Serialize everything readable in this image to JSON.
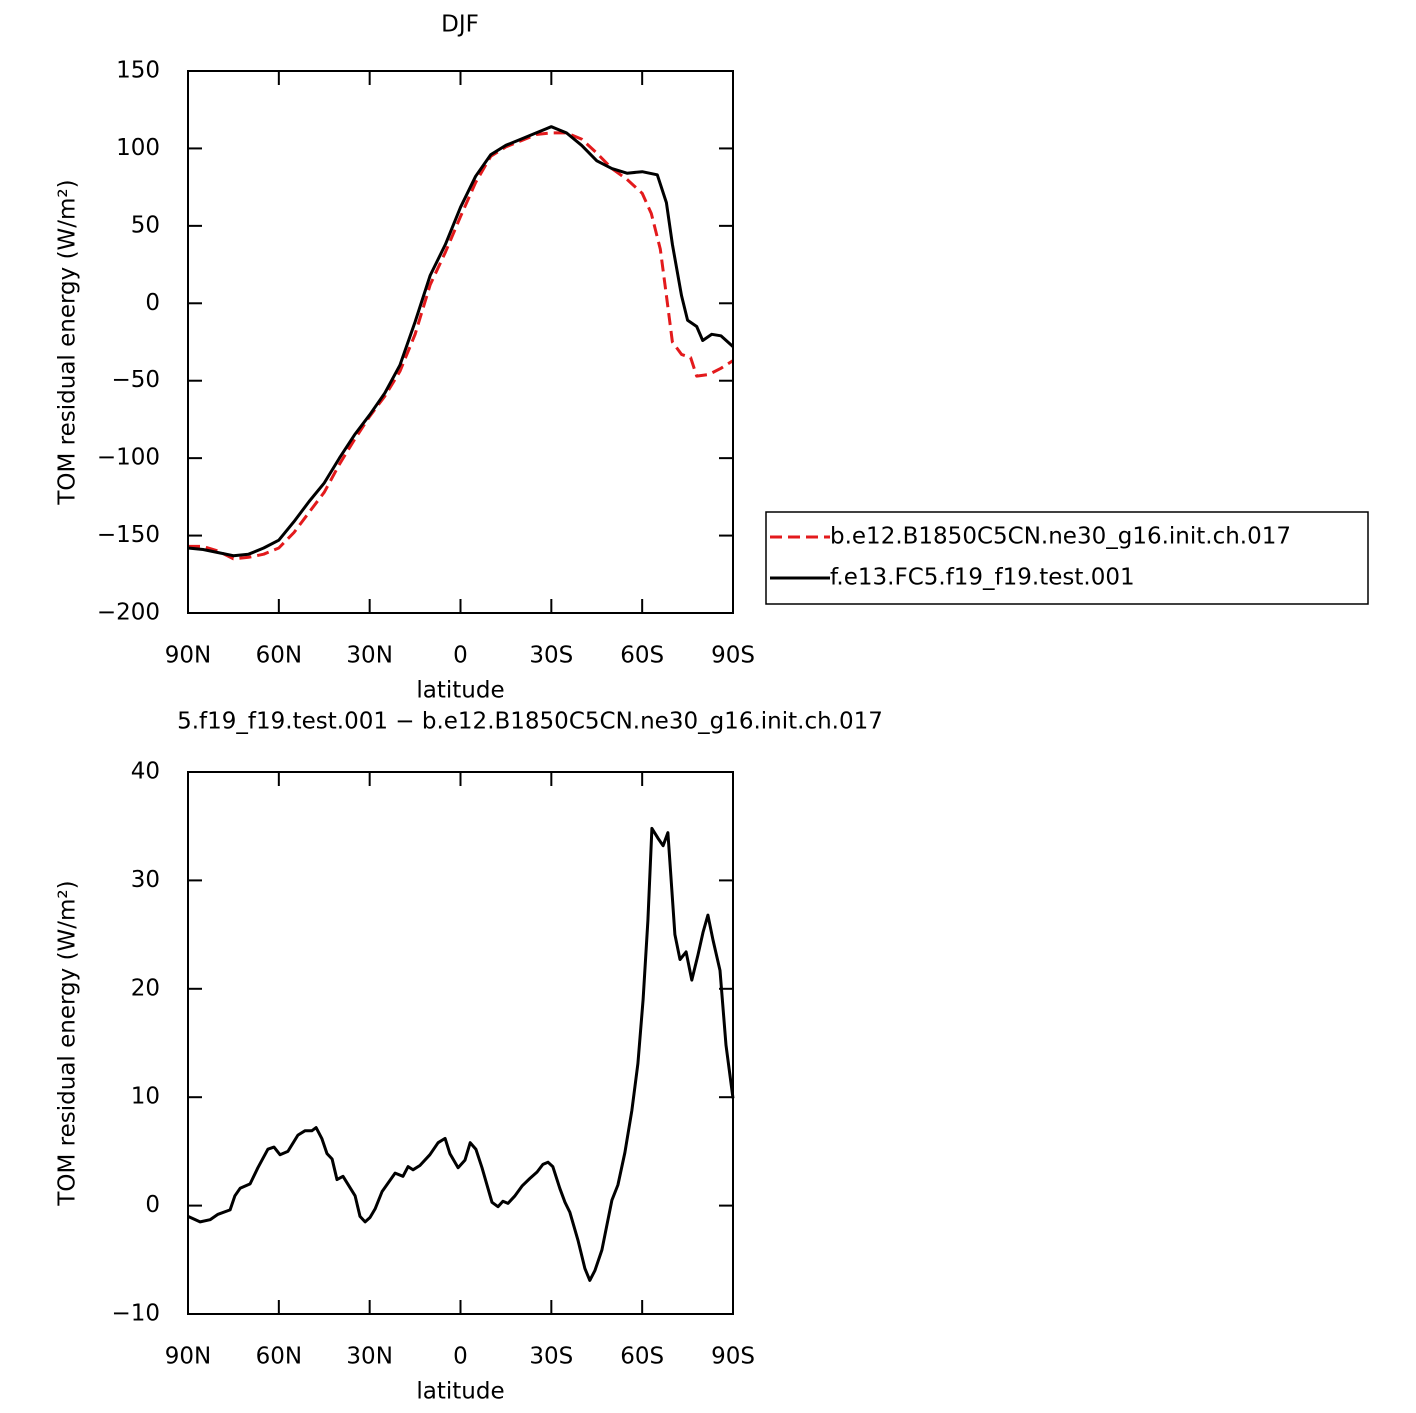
{
  "chart_data": [
    {
      "type": "line",
      "title": "DJF",
      "xlabel": "latitude",
      "ylabel": "TOM residual energy (W/m²)",
      "xlim": [
        90,
        -90
      ],
      "xticks": [
        {
          "value": 90,
          "label": "90N"
        },
        {
          "value": 60,
          "label": "60N"
        },
        {
          "value": 30,
          "label": "30N"
        },
        0,
        {
          "value": -30,
          "label": "30S"
        },
        {
          "value": -60,
          "label": "60S"
        },
        {
          "value": -90,
          "label": "90S"
        }
      ],
      "ylim": [
        -200,
        150
      ],
      "yticks": [
        {
          "value": -200,
          "label": "−200"
        },
        {
          "value": -150,
          "label": "−150"
        },
        {
          "value": -100,
          "label": "−100"
        },
        {
          "value": -50,
          "label": "−50"
        },
        0,
        50,
        100,
        150
      ],
      "legend": "right",
      "series": [
        {
          "name": "b.e12.B1850C5CN.ne30_g16.init.ch.017",
          "color": "#e31a1c",
          "dash": true,
          "x": [
            90,
            85,
            80,
            75,
            70,
            65,
            60,
            55,
            50,
            45,
            40,
            35,
            30,
            25,
            20,
            15,
            10,
            5,
            0,
            -5,
            -10,
            -15,
            -20,
            -25,
            -30,
            -35,
            -40,
            -45,
            -50,
            -55,
            -60,
            -63,
            -66,
            -68,
            -70,
            -73,
            -76,
            -78,
            -82,
            -86,
            -90
          ],
          "values": [
            -157,
            -157,
            -160,
            -165,
            -164,
            -162,
            -158,
            -148,
            -135,
            -122,
            -104,
            -88,
            -73,
            -60,
            -44,
            -20,
            12,
            33,
            56,
            78,
            95,
            101,
            105,
            109,
            110,
            110,
            106,
            97,
            87,
            80,
            71,
            58,
            35,
            5,
            -25,
            -33,
            -35,
            -47,
            -46,
            -42,
            -37
          ]
        },
        {
          "name": "f.e13.FC5.f19_f19.test.001",
          "color": "#000000",
          "dash": false,
          "x": [
            90,
            85,
            80,
            75,
            70,
            65,
            60,
            55,
            50,
            45,
            40,
            35,
            30,
            25,
            20,
            15,
            10,
            5,
            0,
            -5,
            -10,
            -15,
            -20,
            -25,
            -30,
            -35,
            -40,
            -45,
            -50,
            -55,
            -60,
            -65,
            -68,
            -70,
            -73,
            -75,
            -78,
            -80,
            -83,
            -86,
            -90
          ],
          "values": [
            -158,
            -159,
            -161,
            -163,
            -162,
            -158,
            -153,
            -141,
            -128,
            -116,
            -100,
            -85,
            -72,
            -58,
            -40,
            -12,
            18,
            38,
            62,
            82,
            96,
            102,
            106,
            110,
            114,
            110,
            102,
            92,
            87,
            84,
            85,
            83,
            65,
            38,
            5,
            -11,
            -15,
            -24,
            -20,
            -21,
            -28
          ]
        }
      ]
    },
    {
      "type": "line",
      "title": "5.f19_f19.test.001 − b.e12.B1850C5CN.ne30_g16.init.ch.017",
      "xlabel": "latitude",
      "ylabel": "TOM residual energy (W/m²)",
      "xlim": [
        90,
        -90
      ],
      "xticks": [
        {
          "value": 90,
          "label": "90N"
        },
        {
          "value": 60,
          "label": "60N"
        },
        {
          "value": 30,
          "label": "30N"
        },
        0,
        {
          "value": -30,
          "label": "30S"
        },
        {
          "value": -60,
          "label": "60S"
        },
        {
          "value": -90,
          "label": "90S"
        }
      ],
      "ylim": [
        -10,
        40
      ],
      "yticks": [
        {
          "value": -10,
          "label": "−10"
        },
        0,
        10,
        20,
        30,
        40
      ],
      "series": [
        {
          "color": "#000000",
          "dash": false,
          "x": [
            90,
            86,
            82.7,
            80.1,
            76.1,
            74.5,
            72.8,
            69.5,
            66.9,
            63.6,
            61.6,
            59.6,
            57,
            53.7,
            51.4,
            49.1,
            47.7,
            45.8,
            44.1,
            42.4,
            40.8,
            38.8,
            34.8,
            33.2,
            31.5,
            29.9,
            28.2,
            25.9,
            21.6,
            19,
            17.3,
            15.7,
            13.4,
            10.1,
            7.4,
            5.1,
            3.5,
            0.8,
            -1.5,
            -3.2,
            -5.1,
            -7.1,
            -10.4,
            -12.4,
            -14,
            -15.7,
            -18,
            -20.3,
            -22.9,
            -25.3,
            -27.2,
            -28.9,
            -30.5,
            -32.8,
            -34.5,
            -36.1,
            -38.8,
            -41.1,
            -42.7,
            -44.4,
            -46.7,
            -50,
            -52,
            -54.3,
            -56.6,
            -58.6,
            -60.3,
            -61.9,
            -63.2,
            -65.2,
            -66.9,
            -68.5,
            -70.8,
            -72.5,
            -74.5,
            -76.4,
            -78.4,
            -80.1,
            -81.7,
            -83.4,
            -85.7,
            -87.7,
            -90
          ],
          "values": [
            -1,
            -1.5,
            -1.3,
            -0.8,
            -0.4,
            0.9,
            1.6,
            2,
            3.5,
            5.2,
            5.4,
            4.7,
            5,
            6.5,
            6.9,
            6.9,
            7.2,
            6.2,
            4.8,
            4.3,
            2.4,
            2.7,
            0.9,
            -1,
            -1.5,
            -1.1,
            -0.3,
            1.3,
            3,
            2.7,
            3.6,
            3.3,
            3.7,
            4.7,
            5.8,
            6.2,
            4.8,
            3.5,
            4.2,
            5.8,
            5.2,
            3.5,
            0.3,
            -0.1,
            0.4,
            0.2,
            0.9,
            1.8,
            2.5,
            3.1,
            3.8,
            4,
            3.6,
            1.6,
            0.3,
            -0.6,
            -3.2,
            -5.8,
            -6.9,
            -6,
            -4.1,
            0.5,
            1.9,
            4.9,
            8.8,
            13.1,
            19,
            26.3,
            34.8,
            33.9,
            33.2,
            34.4,
            25,
            22.7,
            23.4,
            20.8,
            23.1,
            25.2,
            26.8,
            24.5,
            21.7,
            14.8,
            9.9
          ]
        }
      ]
    }
  ]
}
